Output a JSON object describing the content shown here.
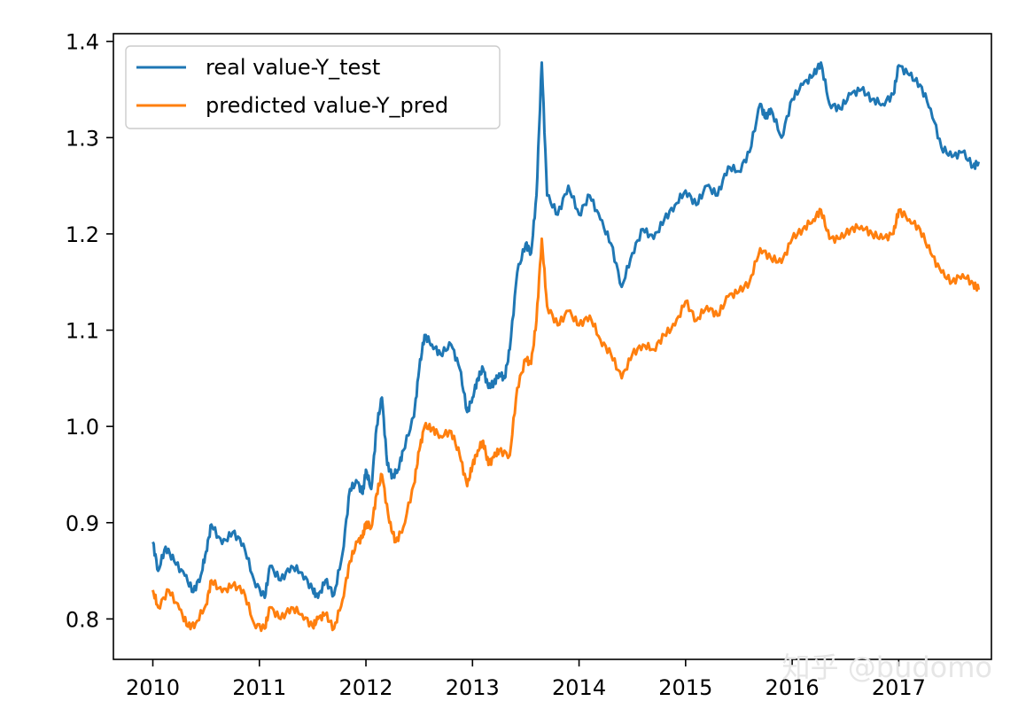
{
  "chart_data": {
    "type": "line",
    "xlim": [
      2009.63,
      2017.87
    ],
    "ylim": [
      0.758,
      1.408
    ],
    "x_ticks": [
      2010,
      2011,
      2012,
      2013,
      2014,
      2015,
      2016,
      2017
    ],
    "x_tick_labels": [
      "2010",
      "2011",
      "2012",
      "2013",
      "2014",
      "2015",
      "2016",
      "2017"
    ],
    "y_ticks": [
      0.8,
      0.9,
      1.0,
      1.1,
      1.2,
      1.3,
      1.4
    ],
    "y_tick_labels": [
      "0.8",
      "0.9",
      "1.0",
      "1.1",
      "1.2",
      "1.3",
      "1.4"
    ],
    "legend_placement": "top-left",
    "grid": false,
    "title": "",
    "xlabel": "",
    "ylabel": "",
    "series": [
      {
        "name": "real value-Y_test",
        "color": "#1f77b4",
        "points": [
          [
            2010.0,
            0.88
          ],
          [
            2010.05,
            0.85
          ],
          [
            2010.12,
            0.875
          ],
          [
            2010.2,
            0.86
          ],
          [
            2010.3,
            0.845
          ],
          [
            2010.38,
            0.828
          ],
          [
            2010.45,
            0.845
          ],
          [
            2010.5,
            0.87
          ],
          [
            2010.55,
            0.898
          ],
          [
            2010.65,
            0.878
          ],
          [
            2010.75,
            0.89
          ],
          [
            2010.85,
            0.878
          ],
          [
            2010.95,
            0.84
          ],
          [
            2011.05,
            0.822
          ],
          [
            2011.1,
            0.855
          ],
          [
            2011.2,
            0.84
          ],
          [
            2011.3,
            0.855
          ],
          [
            2011.4,
            0.848
          ],
          [
            2011.5,
            0.83
          ],
          [
            2011.55,
            0.822
          ],
          [
            2011.62,
            0.84
          ],
          [
            2011.7,
            0.825
          ],
          [
            2011.78,
            0.868
          ],
          [
            2011.85,
            0.935
          ],
          [
            2011.92,
            0.942
          ],
          [
            2011.97,
            0.93
          ],
          [
            2012.0,
            0.955
          ],
          [
            2012.05,
            0.935
          ],
          [
            2012.1,
            1.0
          ],
          [
            2012.15,
            1.03
          ],
          [
            2012.2,
            0.96
          ],
          [
            2012.25,
            0.948
          ],
          [
            2012.3,
            0.955
          ],
          [
            2012.35,
            0.975
          ],
          [
            2012.45,
            1.01
          ],
          [
            2012.5,
            1.06
          ],
          [
            2012.55,
            1.095
          ],
          [
            2012.62,
            1.085
          ],
          [
            2012.7,
            1.075
          ],
          [
            2012.8,
            1.085
          ],
          [
            2012.88,
            1.06
          ],
          [
            2012.95,
            1.015
          ],
          [
            2013.0,
            1.03
          ],
          [
            2013.05,
            1.05
          ],
          [
            2013.1,
            1.06
          ],
          [
            2013.15,
            1.04
          ],
          [
            2013.2,
            1.045
          ],
          [
            2013.25,
            1.055
          ],
          [
            2013.3,
            1.05
          ],
          [
            2013.35,
            1.08
          ],
          [
            2013.42,
            1.16
          ],
          [
            2013.5,
            1.19
          ],
          [
            2013.55,
            1.18
          ],
          [
            2013.6,
            1.24
          ],
          [
            2013.65,
            1.378
          ],
          [
            2013.7,
            1.24
          ],
          [
            2013.8,
            1.22
          ],
          [
            2013.9,
            1.25
          ],
          [
            2014.0,
            1.22
          ],
          [
            2014.1,
            1.24
          ],
          [
            2014.2,
            1.215
          ],
          [
            2014.3,
            1.19
          ],
          [
            2014.4,
            1.145
          ],
          [
            2014.5,
            1.18
          ],
          [
            2014.6,
            1.205
          ],
          [
            2014.7,
            1.195
          ],
          [
            2014.8,
            1.215
          ],
          [
            2014.9,
            1.23
          ],
          [
            2015.0,
            1.245
          ],
          [
            2015.1,
            1.23
          ],
          [
            2015.2,
            1.25
          ],
          [
            2015.3,
            1.24
          ],
          [
            2015.4,
            1.27
          ],
          [
            2015.5,
            1.265
          ],
          [
            2015.6,
            1.285
          ],
          [
            2015.7,
            1.335
          ],
          [
            2015.75,
            1.32
          ],
          [
            2015.8,
            1.33
          ],
          [
            2015.9,
            1.3
          ],
          [
            2016.0,
            1.34
          ],
          [
            2016.1,
            1.355
          ],
          [
            2016.2,
            1.365
          ],
          [
            2016.27,
            1.378
          ],
          [
            2016.35,
            1.335
          ],
          [
            2016.45,
            1.33
          ],
          [
            2016.55,
            1.345
          ],
          [
            2016.65,
            1.35
          ],
          [
            2016.75,
            1.34
          ],
          [
            2016.85,
            1.335
          ],
          [
            2016.95,
            1.345
          ],
          [
            2017.0,
            1.375
          ],
          [
            2017.1,
            1.365
          ],
          [
            2017.2,
            1.355
          ],
          [
            2017.3,
            1.33
          ],
          [
            2017.4,
            1.29
          ],
          [
            2017.5,
            1.28
          ],
          [
            2017.6,
            1.285
          ],
          [
            2017.7,
            1.27
          ],
          [
            2017.75,
            1.275
          ]
        ]
      },
      {
        "name": "predicted value-Y_pred",
        "color": "#ff7f0e",
        "points": [
          [
            2010.0,
            0.83
          ],
          [
            2010.05,
            0.812
          ],
          [
            2010.15,
            0.83
          ],
          [
            2010.25,
            0.81
          ],
          [
            2010.33,
            0.792
          ],
          [
            2010.4,
            0.795
          ],
          [
            2010.5,
            0.815
          ],
          [
            2010.55,
            0.84
          ],
          [
            2010.65,
            0.828
          ],
          [
            2010.75,
            0.835
          ],
          [
            2010.85,
            0.83
          ],
          [
            2010.95,
            0.795
          ],
          [
            2011.05,
            0.79
          ],
          [
            2011.1,
            0.812
          ],
          [
            2011.2,
            0.8
          ],
          [
            2011.3,
            0.812
          ],
          [
            2011.4,
            0.805
          ],
          [
            2011.5,
            0.792
          ],
          [
            2011.55,
            0.8
          ],
          [
            2011.62,
            0.805
          ],
          [
            2011.7,
            0.79
          ],
          [
            2011.78,
            0.82
          ],
          [
            2011.85,
            0.86
          ],
          [
            2011.92,
            0.88
          ],
          [
            2011.97,
            0.885
          ],
          [
            2012.0,
            0.9
          ],
          [
            2012.05,
            0.895
          ],
          [
            2012.1,
            0.93
          ],
          [
            2012.15,
            0.95
          ],
          [
            2012.22,
            0.9
          ],
          [
            2012.28,
            0.88
          ],
          [
            2012.35,
            0.895
          ],
          [
            2012.45,
            0.94
          ],
          [
            2012.5,
            0.975
          ],
          [
            2012.55,
            1.0
          ],
          [
            2012.62,
            0.998
          ],
          [
            2012.7,
            0.99
          ],
          [
            2012.8,
            0.995
          ],
          [
            2012.88,
            0.97
          ],
          [
            2012.95,
            0.938
          ],
          [
            2013.0,
            0.96
          ],
          [
            2013.05,
            0.975
          ],
          [
            2013.1,
            0.985
          ],
          [
            2013.15,
            0.96
          ],
          [
            2013.2,
            0.968
          ],
          [
            2013.25,
            0.975
          ],
          [
            2013.35,
            0.97
          ],
          [
            2013.42,
            1.04
          ],
          [
            2013.5,
            1.07
          ],
          [
            2013.55,
            1.065
          ],
          [
            2013.6,
            1.11
          ],
          [
            2013.65,
            1.195
          ],
          [
            2013.7,
            1.125
          ],
          [
            2013.8,
            1.105
          ],
          [
            2013.9,
            1.12
          ],
          [
            2014.0,
            1.105
          ],
          [
            2014.1,
            1.115
          ],
          [
            2014.2,
            1.09
          ],
          [
            2014.3,
            1.075
          ],
          [
            2014.4,
            1.05
          ],
          [
            2014.5,
            1.075
          ],
          [
            2014.6,
            1.085
          ],
          [
            2014.7,
            1.08
          ],
          [
            2014.8,
            1.095
          ],
          [
            2014.9,
            1.105
          ],
          [
            2015.0,
            1.13
          ],
          [
            2015.1,
            1.11
          ],
          [
            2015.2,
            1.125
          ],
          [
            2015.3,
            1.115
          ],
          [
            2015.4,
            1.135
          ],
          [
            2015.5,
            1.14
          ],
          [
            2015.6,
            1.15
          ],
          [
            2015.7,
            1.185
          ],
          [
            2015.8,
            1.175
          ],
          [
            2015.9,
            1.17
          ],
          [
            2016.0,
            1.195
          ],
          [
            2016.1,
            1.205
          ],
          [
            2016.2,
            1.215
          ],
          [
            2016.27,
            1.225
          ],
          [
            2016.35,
            1.195
          ],
          [
            2016.45,
            1.195
          ],
          [
            2016.55,
            1.205
          ],
          [
            2016.65,
            1.208
          ],
          [
            2016.75,
            1.2
          ],
          [
            2016.85,
            1.195
          ],
          [
            2016.95,
            1.2
          ],
          [
            2017.0,
            1.225
          ],
          [
            2017.1,
            1.215
          ],
          [
            2017.2,
            1.205
          ],
          [
            2017.3,
            1.18
          ],
          [
            2017.4,
            1.16
          ],
          [
            2017.5,
            1.15
          ],
          [
            2017.6,
            1.158
          ],
          [
            2017.7,
            1.148
          ],
          [
            2017.75,
            1.142
          ]
        ]
      }
    ]
  },
  "watermark": {
    "text": "知乎 @budomo"
  }
}
